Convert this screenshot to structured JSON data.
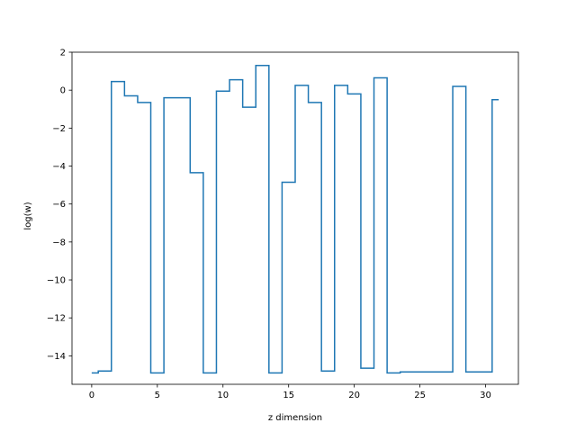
{
  "chart_data": {
    "type": "line",
    "drawstyle": "steps-mid",
    "title": "",
    "xlabel": "z dimension",
    "ylabel": "log(w)",
    "xlim": [
      -1.5,
      32.5
    ],
    "ylim": [
      -15.5,
      2.0
    ],
    "x_ticks": [
      0,
      5,
      10,
      15,
      20,
      25,
      30
    ],
    "x_tick_labels": [
      "0",
      "5",
      "10",
      "15",
      "20",
      "25",
      "30"
    ],
    "y_ticks": [
      2,
      0,
      -2,
      -4,
      -6,
      -8,
      -10,
      -12,
      -14
    ],
    "y_tick_labels": [
      "2",
      "0",
      "−2",
      "−4",
      "−6",
      "−8",
      "−10",
      "−12",
      "−14"
    ],
    "grid": false,
    "series": [
      {
        "color": "#1f77b4",
        "x": [
          0,
          1,
          2,
          3,
          4,
          5,
          6,
          7,
          8,
          9,
          10,
          11,
          12,
          13,
          14,
          15,
          16,
          17,
          18,
          19,
          20,
          21,
          22,
          23,
          24,
          25,
          26,
          27,
          28,
          29,
          30,
          31
        ],
        "values": [
          -14.9,
          -14.8,
          0.45,
          -0.3,
          -0.65,
          -14.9,
          -0.4,
          -0.4,
          -4.35,
          -14.9,
          -0.05,
          0.55,
          -0.9,
          1.3,
          -14.9,
          -4.85,
          0.25,
          -0.65,
          -14.8,
          0.25,
          -0.2,
          -14.65,
          0.65,
          -14.9,
          -14.85,
          -14.85,
          -14.85,
          -14.85,
          0.2,
          -14.85,
          -14.85,
          -0.5
        ]
      }
    ]
  }
}
